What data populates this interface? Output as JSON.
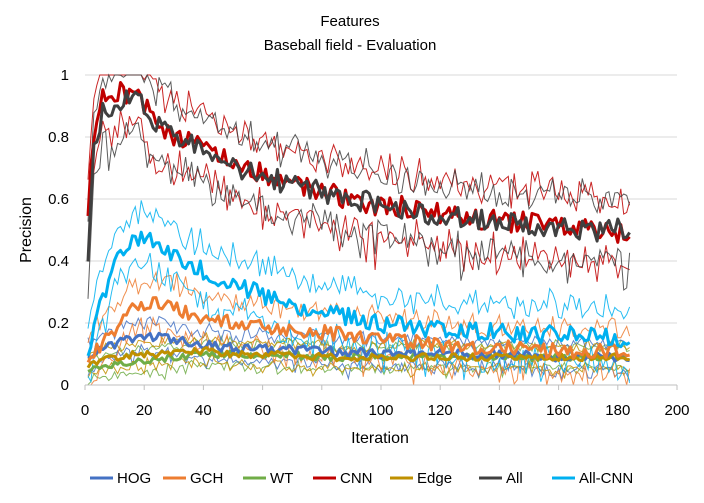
{
  "chart_data": {
    "type": "line",
    "title": "Features",
    "subtitle": "Baseball field - Evaluation",
    "xlabel": "Iteration",
    "ylabel": "Precision",
    "xlim": [
      0,
      200
    ],
    "ylim": [
      0,
      1
    ],
    "x_ticks": [
      0,
      20,
      40,
      60,
      80,
      100,
      120,
      140,
      160,
      180,
      200
    ],
    "y_ticks": [
      0,
      0.2,
      0.4,
      0.6,
      0.8,
      1
    ],
    "x_tick_labels": [
      "0",
      "20",
      "40",
      "60",
      "80",
      "100",
      "120",
      "140",
      "160",
      "180",
      "200"
    ],
    "y_tick_labels": [
      "0",
      "0.2",
      "0.4",
      "0.6",
      "0.8",
      "1"
    ],
    "grid": "horizontal",
    "legend_position": "bottom",
    "series": [
      {
        "name": "HOG",
        "color": "#4472C4",
        "x": [
          1,
          5,
          10,
          15,
          20,
          30,
          40,
          50,
          60,
          80,
          100,
          120,
          140,
          160,
          184
        ],
        "values": [
          0.1,
          0.11,
          0.13,
          0.15,
          0.16,
          0.15,
          0.13,
          0.12,
          0.12,
          0.11,
          0.1,
          0.1,
          0.1,
          0.09,
          0.09
        ]
      },
      {
        "name": "GCH",
        "color": "#ED7D31",
        "x": [
          1,
          5,
          10,
          15,
          20,
          25,
          30,
          40,
          50,
          60,
          80,
          100,
          120,
          140,
          160,
          184
        ],
        "values": [
          0.08,
          0.12,
          0.18,
          0.24,
          0.26,
          0.27,
          0.25,
          0.22,
          0.2,
          0.19,
          0.17,
          0.15,
          0.13,
          0.12,
          0.11,
          0.11
        ]
      },
      {
        "name": "WT",
        "color": "#70AD47",
        "x": [
          1,
          5,
          10,
          20,
          30,
          40,
          50,
          60,
          80,
          100,
          120,
          140,
          160,
          184
        ],
        "values": [
          0.05,
          0.06,
          0.07,
          0.08,
          0.09,
          0.1,
          0.1,
          0.1,
          0.09,
          0.09,
          0.09,
          0.09,
          0.09,
          0.09
        ]
      },
      {
        "name": "CNN",
        "color": "#C00000",
        "x": [
          1,
          3,
          6,
          10,
          15,
          20,
          25,
          30,
          40,
          50,
          60,
          70,
          80,
          90,
          100,
          110,
          120,
          130,
          140,
          150,
          160,
          170,
          184
        ],
        "values": [
          0.55,
          0.8,
          0.93,
          0.95,
          0.94,
          0.9,
          0.85,
          0.8,
          0.76,
          0.72,
          0.68,
          0.65,
          0.62,
          0.6,
          0.58,
          0.57,
          0.55,
          0.54,
          0.53,
          0.52,
          0.51,
          0.5,
          0.49
        ]
      },
      {
        "name": "Edge",
        "color": "#BF9000",
        "x": [
          1,
          5,
          10,
          20,
          30,
          40,
          50,
          60,
          80,
          100,
          120,
          140,
          160,
          184
        ],
        "values": [
          0.06,
          0.08,
          0.09,
          0.1,
          0.1,
          0.11,
          0.1,
          0.1,
          0.09,
          0.09,
          0.09,
          0.09,
          0.09,
          0.09
        ]
      },
      {
        "name": "All",
        "color": "#404040",
        "x": [
          1,
          3,
          6,
          10,
          15,
          20,
          25,
          30,
          40,
          50,
          60,
          70,
          80,
          90,
          100,
          110,
          120,
          130,
          140,
          150,
          160,
          170,
          184
        ],
        "values": [
          0.4,
          0.75,
          0.88,
          0.9,
          0.93,
          0.9,
          0.84,
          0.8,
          0.76,
          0.71,
          0.67,
          0.65,
          0.62,
          0.6,
          0.58,
          0.56,
          0.55,
          0.54,
          0.53,
          0.52,
          0.51,
          0.5,
          0.5
        ]
      },
      {
        "name": "All-CNN",
        "color": "#00B0F0",
        "x": [
          1,
          5,
          10,
          15,
          20,
          25,
          30,
          40,
          50,
          60,
          70,
          80,
          90,
          100,
          120,
          140,
          160,
          184
        ],
        "values": [
          0.1,
          0.25,
          0.4,
          0.46,
          0.48,
          0.45,
          0.42,
          0.37,
          0.33,
          0.29,
          0.26,
          0.24,
          0.22,
          0.2,
          0.18,
          0.17,
          0.16,
          0.15
        ]
      }
    ]
  }
}
